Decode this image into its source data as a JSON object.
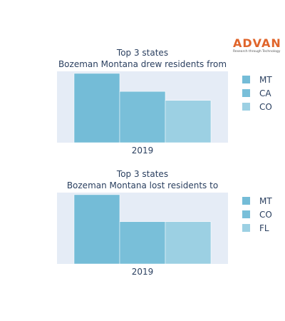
{
  "logo": {
    "name": "ADVAN",
    "tagline": "Research through Technology",
    "color": "#e0652b"
  },
  "chart_data": [
    {
      "type": "bar",
      "title": "Top 3 states",
      "subtitle": "Bozeman Montana drew residents from",
      "categories": [
        "2019"
      ],
      "series": [
        {
          "name": "MT",
          "values": [
            1.0
          ],
          "color": "#74bcd7"
        },
        {
          "name": "CA",
          "values": [
            0.74
          ],
          "color": "#79bfd9"
        },
        {
          "name": "CO",
          "values": [
            0.61
          ],
          "color": "#9cd0e3"
        }
      ],
      "ylim": [
        0,
        1.03
      ],
      "yaxis_visible": false,
      "grid": false,
      "plot_background": "#e5ecf6",
      "legend_position": "right"
    },
    {
      "type": "bar",
      "title": "Top 3 states",
      "subtitle": "Bozeman Montana lost residents to",
      "categories": [
        "2019"
      ],
      "series": [
        {
          "name": "MT",
          "values": [
            1.0
          ],
          "color": "#74bcd7"
        },
        {
          "name": "CO",
          "values": [
            0.61
          ],
          "color": "#79bfd9"
        },
        {
          "name": "FL",
          "values": [
            0.61
          ],
          "color": "#9cd0e3"
        }
      ],
      "ylim": [
        0,
        1.03
      ],
      "yaxis_visible": false,
      "grid": false,
      "plot_background": "#e5ecf6",
      "legend_position": "right"
    }
  ]
}
